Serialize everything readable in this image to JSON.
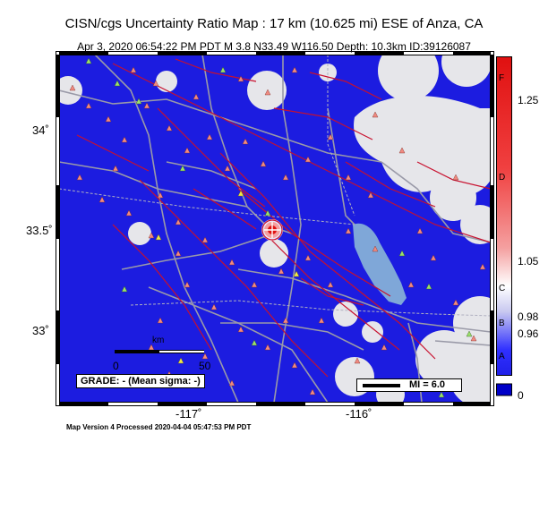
{
  "header": {
    "title": "CISN/cgs Uncertainty Ratio Map : 17 km (10.625 mi) ESE of Anza, CA",
    "subtitle": "Apr  3, 2020 06:54:22 PM PDT   M 3.8   N33.49 W116.50   Depth: 10.3km   ID:39126087"
  },
  "map": {
    "lat_ticks": [
      "34˚",
      "33.5˚",
      "33˚"
    ],
    "lon_ticks": [
      "-117˚",
      "-116˚"
    ],
    "scale_bar": {
      "label": "km",
      "start": "0",
      "end": "50"
    },
    "grade_box": "GRADE: - (Mean sigma: -)",
    "mi_legend": "MI = 6.0",
    "epicenter": {
      "lat": 33.49,
      "lon": -116.5
    },
    "colors": {
      "land": "#e6e6ea",
      "ocean": "#7fa7d8",
      "lake": "#7fa7d8",
      "uncertainty_fill": "#1c1ce0",
      "faults": "#c8102e",
      "roads": "#9a9aa8",
      "station_triangle": "#f08a80",
      "station_triangle_alt": "#9be06a",
      "station_triangle_alt2": "#f0e84a"
    }
  },
  "colorbar": {
    "labels_right": [
      "1.25",
      "1.05",
      "0.98",
      "0.96",
      "0"
    ],
    "grades": [
      "F",
      "D",
      "C",
      "B",
      "A"
    ],
    "colors": [
      "#e01010",
      "#f04040",
      "#f4a0a0",
      "#ffffff",
      "#c8c8f0",
      "#3030ff",
      "#0000c8"
    ]
  },
  "footer": "Map Version 4 Processed 2020-04-04 05:47:53 PM PDT"
}
